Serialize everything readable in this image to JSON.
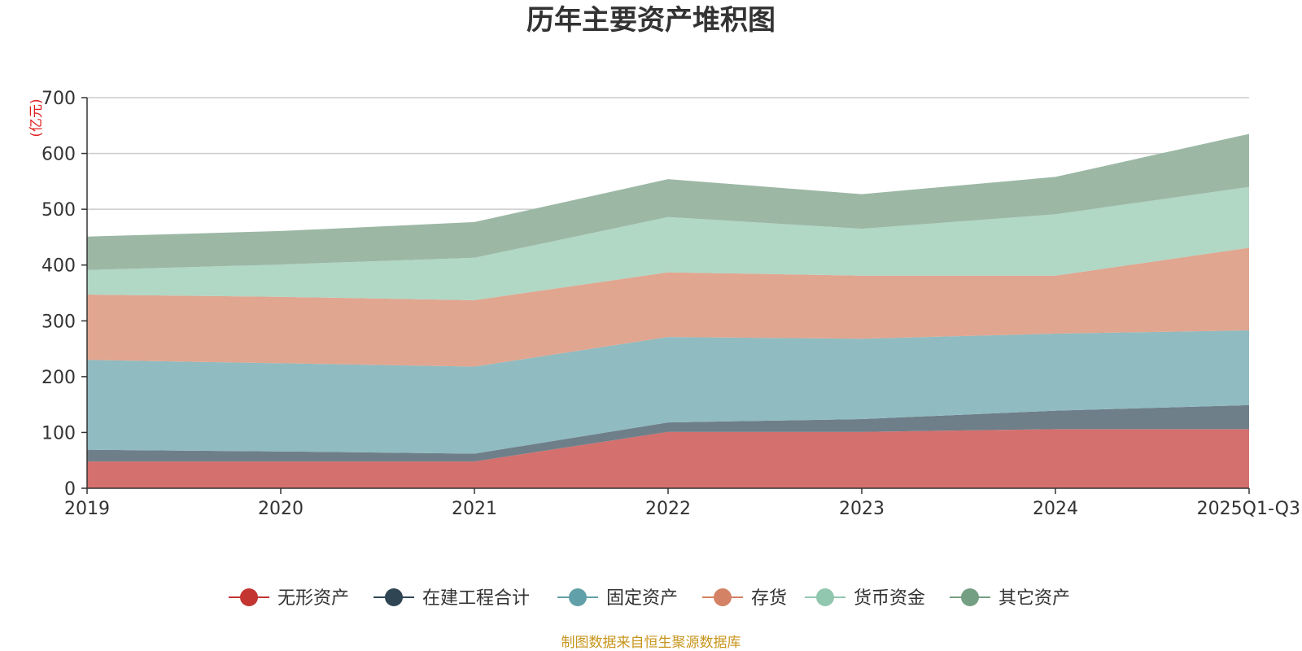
{
  "chart_data": {
    "type": "area",
    "stacked": true,
    "title": "历年主要资产堆积图",
    "ylabel": "(亿元)",
    "xlabel": "",
    "categories": [
      "2019",
      "2020",
      "2021",
      "2022",
      "2023",
      "2024",
      "2025Q1-Q3"
    ],
    "ylim": [
      0,
      700
    ],
    "yticks": [
      0,
      100,
      200,
      300,
      400,
      500,
      600,
      700
    ],
    "grid": true,
    "legend_position": "bottom",
    "series": [
      {
        "name": "无形资产",
        "color": "#c23531",
        "fill": "#d4706d",
        "values": [
          48,
          48,
          48,
          101,
          101,
          106,
          106
        ]
      },
      {
        "name": "在建工程合计",
        "color": "#2f4554",
        "fill": "#6e7f8a",
        "values": [
          21,
          18,
          14,
          17,
          23,
          33,
          43
        ]
      },
      {
        "name": "固定资产",
        "color": "#61a0a8",
        "fill": "#90bbc1",
        "values": [
          161,
          158,
          156,
          153,
          144,
          138,
          134
        ]
      },
      {
        "name": "存货",
        "color": "#d48265",
        "fill": "#e0a690",
        "values": [
          117,
          119,
          119,
          116,
          113,
          104,
          148
        ]
      },
      {
        "name": "货币资金",
        "color": "#91c7ae",
        "fill": "#b1d7c5",
        "values": [
          44,
          58,
          76,
          99,
          84,
          110,
          109
        ]
      },
      {
        "name": "其它资产",
        "color": "#749f83",
        "fill": "#9cb8a5",
        "values": [
          60,
          60,
          64,
          68,
          62,
          67,
          95
        ]
      }
    ]
  },
  "footer": {
    "source": "制图数据来自恒生聚源数据库"
  }
}
